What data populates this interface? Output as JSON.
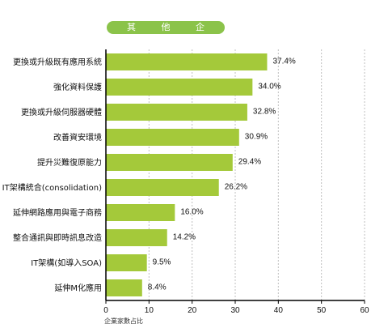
{
  "chart_data": {
    "type": "bar",
    "orientation": "horizontal",
    "title": "其 他 企 業",
    "categories": [
      "更換或升級既有應用系統",
      "強化資料保護",
      "更換或升級伺服器硬體",
      "改善資安環境",
      "提升災難復原能力",
      "IT架構統合(consolidation)",
      "延伸網路應用與電子商務",
      "整合通訊與即時訊息改造",
      "IT架構(如導入SOA)",
      "延伸M化應用"
    ],
    "values": [
      37.4,
      34.0,
      32.8,
      30.9,
      29.4,
      26.2,
      16.0,
      14.2,
      9.5,
      8.4
    ],
    "value_labels": [
      "37.4%",
      "34.0%",
      "32.8%",
      "30.9%",
      "29.4%",
      "26.2%",
      "16.0%",
      "14.2%",
      "9.5%",
      "8.4%"
    ],
    "xlabel": "企業家數占比",
    "xlim": [
      0,
      60
    ],
    "xticks": [
      0,
      10,
      20,
      30,
      40,
      50,
      60
    ],
    "grid": "vertical dashed",
    "bar_color": "#a4c93a",
    "title_pill_color": "#8bc34a"
  }
}
